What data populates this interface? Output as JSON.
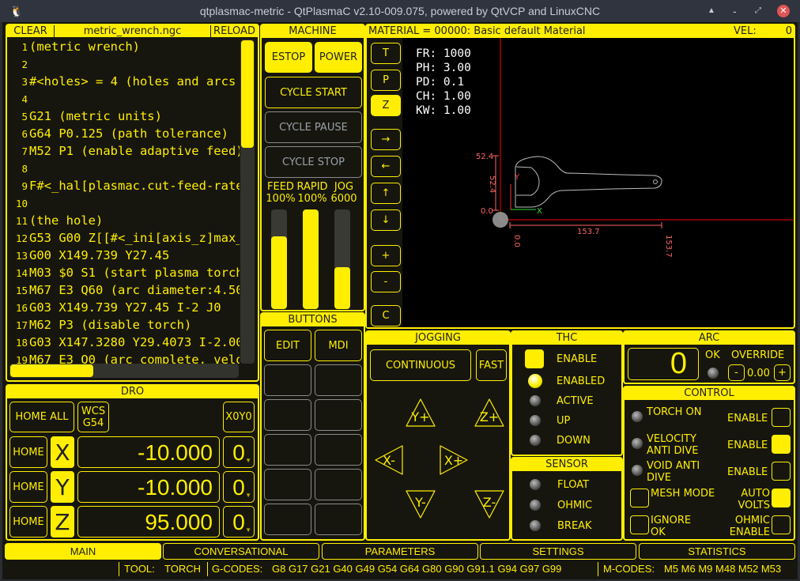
{
  "window": {
    "title": "qtplasmac-metric - QtPlasmaC v2.10-009.075, powered by QtVCP and LinuxCNC"
  },
  "editor": {
    "clear": "CLEAR",
    "filename": "metric_wrench.ngc",
    "reload": "RELOAD",
    "lines": [
      "(metric wrench)",
      "",
      "#<holes> = 4 (holes and arcs w",
      "",
      "G21 (metric units)",
      "G64 P0.125 (path tolerance)",
      "M52 P1 (enable adaptive feed)",
      "",
      "F#<_hal[plasmac.cut-feed-rate]",
      "",
      "(the hole)",
      "G53 G00 Z[[#<_ini[axis_z]max_l",
      "G00 X149.739 Y27.45",
      "M03 $0 S1 (start plasma torch)",
      "M67 E3 Q60 (arc diameter:4.500",
      "G03 X149.739 Y27.45 I-2 J0",
      "M62 P3 (disable torch)",
      "G03 X147.3280 Y29.4073 I-2.0000",
      "M67 E3 Q0 (arc complete, veloc"
    ]
  },
  "machine": {
    "title": "MACHINE",
    "estop": "ESTOP",
    "power": "POWER",
    "cycle_start": "CYCLE START",
    "cycle_pause": "CYCLE PAUSE",
    "cycle_stop": "CYCLE STOP",
    "sliders": [
      {
        "label": "FEED",
        "value": "100%",
        "fill": 0.73
      },
      {
        "label": "RAPID",
        "value": "100%",
        "fill": 1.0
      },
      {
        "label": "JOG",
        "value": "6000",
        "fill": 0.42
      }
    ]
  },
  "buttons": {
    "title": "BUTTONS",
    "edit": "EDIT",
    "mdi": "MDI"
  },
  "preview": {
    "material": "MATERIAL =  00000: Basic default Material",
    "vel_label": "VEL:",
    "vel": "0",
    "view_buttons": [
      "T",
      "P",
      "Z",
      "→",
      "←",
      "↑",
      "↓",
      "+",
      "-",
      "C"
    ],
    "info": [
      "FR: 1000",
      "PH: 3.00",
      "PD: 0.1",
      "CH: 1.00",
      "KW: 1.00"
    ],
    "dims": {
      "y_max": "52.4",
      "y_min": "0.0",
      "y_len": "52.4",
      "x_len": "153.7",
      "x_min": "0.0",
      "x_max": "153.7"
    },
    "axis_x": "X",
    "axis_y": "Y",
    "colors": {
      "extents": "#ff5555",
      "axes": "#ff0000",
      "path": "#bbbbbb"
    }
  },
  "dro": {
    "title": "DRO",
    "home_all": "HOME ALL",
    "wcs": "WCS G54",
    "x0y0": "X0Y0",
    "axes": [
      {
        "home": "HOME",
        "axis": "X",
        "value": "-10.000",
        "zero": "0"
      },
      {
        "home": "HOME",
        "axis": "Y",
        "value": "-10.000",
        "zero": "0"
      },
      {
        "home": "HOME",
        "axis": "Z",
        "value": "95.000",
        "zero": "0"
      }
    ]
  },
  "jogging": {
    "title": "JOGGING",
    "mode": "CONTINUOUS",
    "speed": "FAST",
    "yplus": "Y+",
    "yminus": "Y-",
    "xplus": "X+",
    "xminus": "X-",
    "zplus": "Z+",
    "zminus": "Z-"
  },
  "thc": {
    "title": "THC",
    "enable": "ENABLE",
    "enable_checked": true,
    "leds": [
      {
        "label": "ENABLED",
        "on": true
      },
      {
        "label": "ACTIVE",
        "on": false
      },
      {
        "label": "UP",
        "on": false
      },
      {
        "label": "DOWN",
        "on": false
      }
    ]
  },
  "sensor": {
    "title": "SENSOR",
    "leds": [
      {
        "label": "FLOAT"
      },
      {
        "label": "OHMIC"
      },
      {
        "label": "BREAK"
      }
    ]
  },
  "arc": {
    "title": "ARC",
    "voltage": "0",
    "ok": "OK",
    "override": "OVERRIDE",
    "minus": "-",
    "plus": "+",
    "override_value": "0.00"
  },
  "control": {
    "title": "CONTROL",
    "rows": [
      {
        "led": "TORCH ON",
        "label": "ENABLE",
        "checked": false
      },
      {
        "led": "VELOCITY ANTI DIVE",
        "label": "ENABLE",
        "checked": true
      },
      {
        "led": "VOID ANTI DIVE",
        "label": "ENABLE",
        "checked": false
      }
    ],
    "mesh": "MESH MODE",
    "mesh_checked": false,
    "auto_volts": "AUTO VOLTS",
    "auto_volts_checked": true,
    "ignore_ok": "IGNORE OK",
    "ignore_checked": false,
    "ohmic": "OHMIC ENABLE",
    "ohmic_checked": false
  },
  "tabs": [
    "MAIN",
    "CONVERSATIONAL",
    "PARAMETERS",
    "SETTINGS",
    "STATISTICS"
  ],
  "status": {
    "tool_label": "TOOL:",
    "tool": "TORCH",
    "gcodes_label": "G-CODES:",
    "gcodes": "G8 G17 G21 G40 G49 G54 G64 G80 G90 G91.1 G94 G97 G99",
    "mcodes_label": "M-CODES:",
    "mcodes": "M5 M6 M9 M48 M52 M53"
  }
}
